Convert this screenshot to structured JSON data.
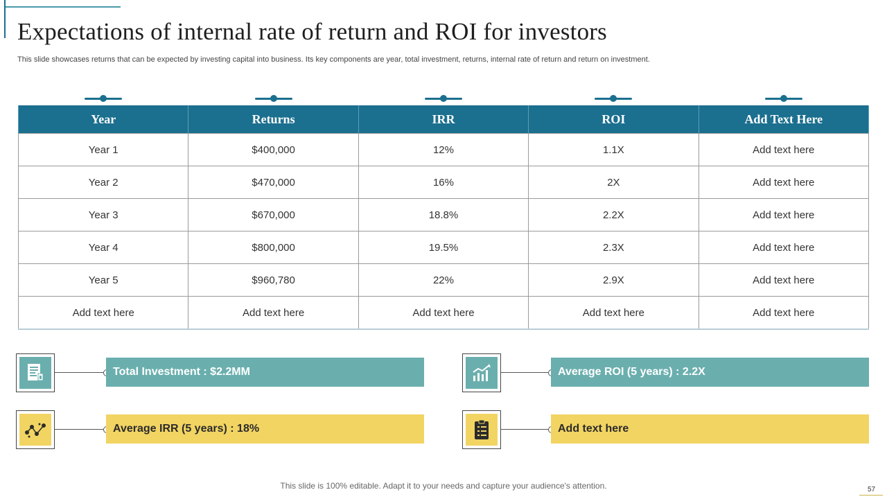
{
  "slide": {
    "title": "Expectations of internal rate of return and ROI for investors",
    "subtitle": "This slide showcases returns that can be expected by investing capital into business. Its key components are year, total investment, returns, internal rate of return and return on investment.",
    "footer": "This slide is 100% editable. Adapt it to your needs and capture your audience's attention.",
    "page_number": "57"
  },
  "table": {
    "headers": [
      "Year",
      "Returns",
      "IRR",
      "ROI",
      "Add Text Here"
    ],
    "rows": [
      [
        "Year 1",
        "$400,000",
        "12%",
        "1.1X",
        "Add text here"
      ],
      [
        "Year 2",
        "$470,000",
        "16%",
        "2X",
        "Add text here"
      ],
      [
        "Year 3",
        "$670,000",
        "18.8%",
        "2.2X",
        "Add text here"
      ],
      [
        "Year 4",
        "$800,000",
        "19.5%",
        "2.3X",
        "Add text here"
      ],
      [
        "Year 5",
        "$960,780",
        "22%",
        "2.9X",
        "Add text here"
      ],
      [
        "Add text here",
        "Add text here",
        "Add text here",
        "Add text here",
        "Add text here"
      ]
    ]
  },
  "kpis": [
    {
      "label": "Total Investment : $2.2MM",
      "icon": "report-icon",
      "color": "#6aafae"
    },
    {
      "label": "Average ROI (5 years) : 2.2X",
      "icon": "growth-chart-icon",
      "color": "#6aafae"
    },
    {
      "label": "Average IRR (5 years) : 18%",
      "icon": "scatter-trend-icon",
      "color": "#f2d462"
    },
    {
      "label": "Add text here",
      "icon": "clipboard-icon",
      "color": "#f2d462"
    }
  ],
  "colors": {
    "accent": "#1b6f8f",
    "teal": "#6aafae",
    "yellow": "#f2d462"
  }
}
